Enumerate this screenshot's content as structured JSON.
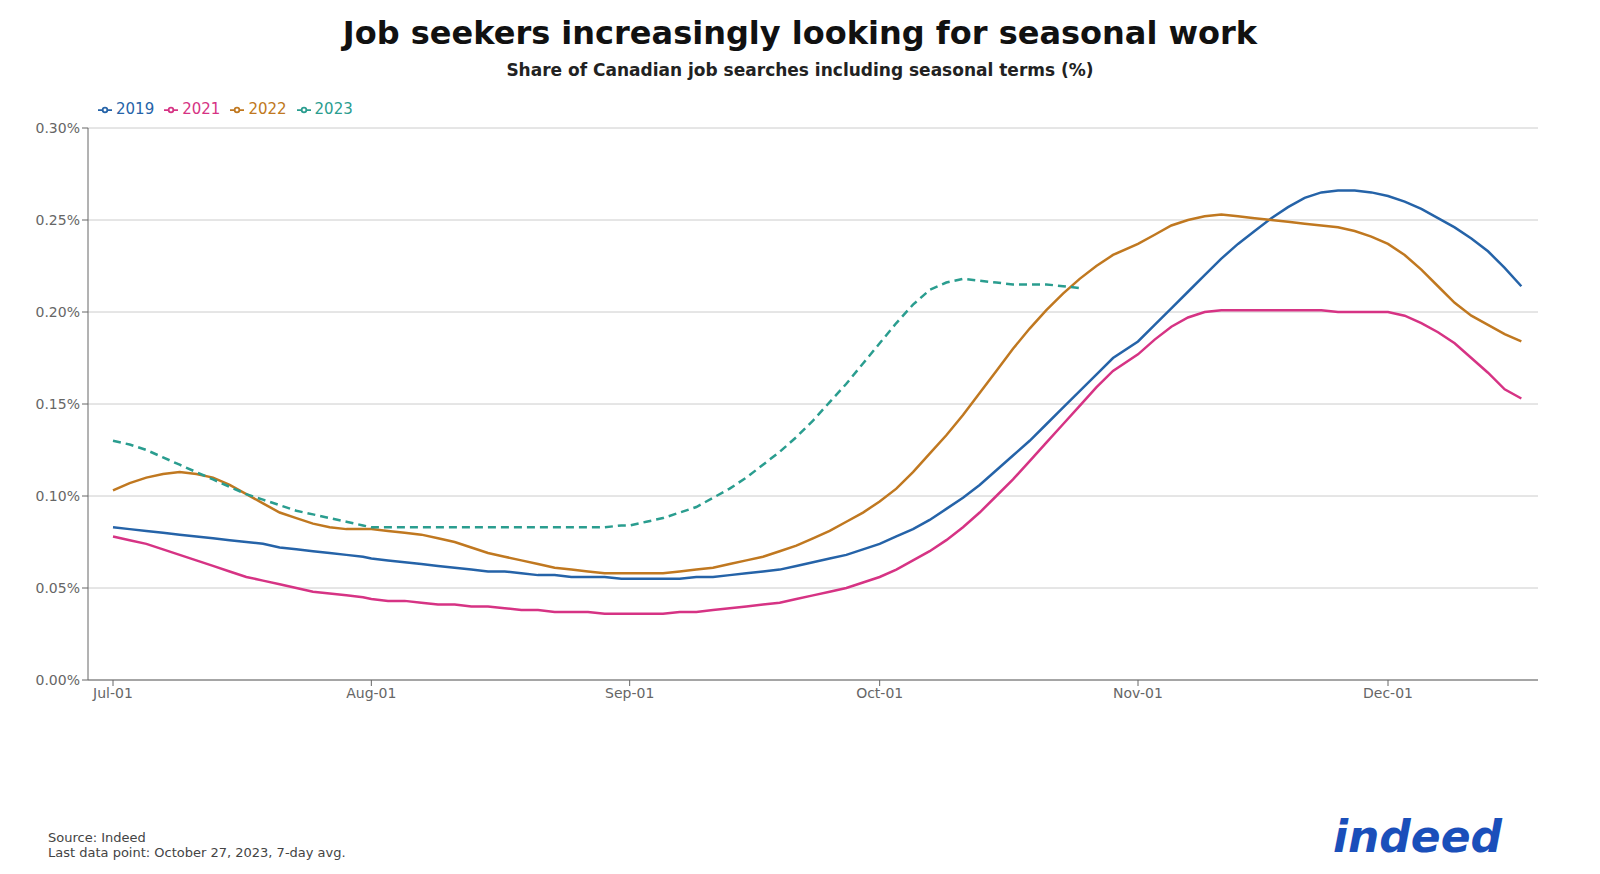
{
  "chart_data": {
    "type": "line",
    "title": "Job seekers increasingly looking for seasonal work",
    "subtitle": "Share of Canadian job searches including seasonal terms (%)",
    "annotations": [
      {
        "text": "Source: Indeed\nLast data point: October 27, 2023, 7-day avg."
      },
      {
        "text": "indeed",
        "color": "#1a4fba"
      }
    ],
    "xlim": [
      179,
      353
    ],
    "xticks": [
      {
        "value": 182,
        "label": "Jul-01"
      },
      {
        "value": 213,
        "label": "Aug-01"
      },
      {
        "value": 244,
        "label": "Sep-01"
      },
      {
        "value": 274,
        "label": "Oct-01"
      },
      {
        "value": 305,
        "label": "Nov-01"
      },
      {
        "value": 335,
        "label": "Dec-01"
      }
    ],
    "ylim": [
      0.0,
      0.003
    ],
    "yticks": [
      {
        "value": 0.0,
        "label": "0.00%"
      },
      {
        "value": 0.0005,
        "label": "0.05%"
      },
      {
        "value": 0.001,
        "label": "0.10%"
      },
      {
        "value": 0.0015,
        "label": "0.15%"
      },
      {
        "value": 0.002,
        "label": "0.20%"
      },
      {
        "value": 0.0025,
        "label": "0.25%"
      },
      {
        "value": 0.003,
        "label": "0.30%"
      }
    ],
    "grid": "y",
    "legend": "upper left",
    "series": [
      {
        "name": "2019",
        "color": "#2563a8",
        "line_style": "solid",
        "x": [
          182,
          184,
          186,
          188,
          190,
          192,
          194,
          196,
          198,
          200,
          202,
          204,
          206,
          208,
          210,
          212,
          213,
          215,
          217,
          219,
          221,
          223,
          225,
          227,
          229,
          231,
          233,
          235,
          237,
          239,
          241,
          243,
          244,
          246,
          248,
          250,
          252,
          254,
          256,
          258,
          260,
          262,
          264,
          266,
          268,
          270,
          272,
          274,
          276,
          278,
          280,
          282,
          284,
          286,
          288,
          290,
          292,
          294,
          296,
          298,
          300,
          302,
          305,
          307,
          309,
          311,
          313,
          315,
          317,
          319,
          321,
          323,
          325,
          327,
          329,
          331,
          333,
          335,
          337,
          339,
          341,
          343,
          345,
          347,
          349,
          351
        ],
        "values": [
          0.00083,
          0.00082,
          0.00081,
          0.0008,
          0.00079,
          0.00078,
          0.00077,
          0.00076,
          0.00075,
          0.00074,
          0.00072,
          0.00071,
          0.0007,
          0.00069,
          0.00068,
          0.00067,
          0.00066,
          0.00065,
          0.00064,
          0.00063,
          0.00062,
          0.00061,
          0.0006,
          0.00059,
          0.00059,
          0.00058,
          0.00057,
          0.00057,
          0.00056,
          0.00056,
          0.00056,
          0.00055,
          0.00055,
          0.00055,
          0.00055,
          0.00055,
          0.00056,
          0.00056,
          0.00057,
          0.00058,
          0.00059,
          0.0006,
          0.00062,
          0.00064,
          0.00066,
          0.00068,
          0.00071,
          0.00074,
          0.00078,
          0.00082,
          0.00087,
          0.00093,
          0.00099,
          0.00106,
          0.00114,
          0.00122,
          0.0013,
          0.00139,
          0.00148,
          0.00157,
          0.00166,
          0.00175,
          0.00184,
          0.00193,
          0.00202,
          0.00211,
          0.0022,
          0.00229,
          0.00237,
          0.00244,
          0.00251,
          0.00257,
          0.00262,
          0.00265,
          0.00266,
          0.00266,
          0.00265,
          0.00263,
          0.0026,
          0.00256,
          0.00251,
          0.00246,
          0.0024,
          0.00233,
          0.00224,
          0.00214
        ]
      },
      {
        "name": "2021",
        "color": "#d63384",
        "line_style": "solid",
        "x": [
          182,
          184,
          186,
          188,
          190,
          192,
          194,
          196,
          198,
          200,
          202,
          204,
          206,
          208,
          210,
          212,
          213,
          215,
          217,
          219,
          221,
          223,
          225,
          227,
          229,
          231,
          233,
          235,
          237,
          239,
          241,
          243,
          244,
          246,
          248,
          250,
          252,
          254,
          256,
          258,
          260,
          262,
          264,
          266,
          268,
          270,
          272,
          274,
          276,
          278,
          280,
          282,
          284,
          286,
          288,
          290,
          292,
          294,
          296,
          298,
          300,
          302,
          305,
          307,
          309,
          311,
          313,
          315,
          317,
          319,
          321,
          323,
          325,
          327,
          329,
          331,
          333,
          335,
          337,
          339,
          341,
          343,
          345,
          347,
          349,
          351
        ],
        "values": [
          0.00078,
          0.00076,
          0.00074,
          0.00071,
          0.00068,
          0.00065,
          0.00062,
          0.00059,
          0.00056,
          0.00054,
          0.00052,
          0.0005,
          0.00048,
          0.00047,
          0.00046,
          0.00045,
          0.00044,
          0.00043,
          0.00043,
          0.00042,
          0.00041,
          0.00041,
          0.0004,
          0.0004,
          0.00039,
          0.00038,
          0.00038,
          0.00037,
          0.00037,
          0.00037,
          0.00036,
          0.00036,
          0.00036,
          0.00036,
          0.00036,
          0.00037,
          0.00037,
          0.00038,
          0.00039,
          0.0004,
          0.00041,
          0.00042,
          0.00044,
          0.00046,
          0.00048,
          0.0005,
          0.00053,
          0.00056,
          0.0006,
          0.00065,
          0.0007,
          0.00076,
          0.00083,
          0.00091,
          0.001,
          0.00109,
          0.00119,
          0.00129,
          0.00139,
          0.00149,
          0.00159,
          0.00168,
          0.00177,
          0.00185,
          0.00192,
          0.00197,
          0.002,
          0.00201,
          0.00201,
          0.00201,
          0.00201,
          0.00201,
          0.00201,
          0.00201,
          0.002,
          0.002,
          0.002,
          0.002,
          0.00198,
          0.00194,
          0.00189,
          0.00183,
          0.00175,
          0.00167,
          0.00158,
          0.00153
        ]
      },
      {
        "name": "2022",
        "color": "#c07820",
        "line_style": "solid",
        "x": [
          182,
          184,
          186,
          188,
          190,
          192,
          194,
          196,
          198,
          200,
          202,
          204,
          206,
          208,
          210,
          212,
          213,
          215,
          217,
          219,
          221,
          223,
          225,
          227,
          229,
          231,
          233,
          235,
          237,
          239,
          241,
          243,
          244,
          246,
          248,
          250,
          252,
          254,
          256,
          258,
          260,
          262,
          264,
          266,
          268,
          270,
          272,
          274,
          276,
          278,
          280,
          282,
          284,
          286,
          288,
          290,
          292,
          294,
          296,
          298,
          300,
          302,
          305,
          307,
          309,
          311,
          313,
          315,
          317,
          319,
          321,
          323,
          325,
          327,
          329,
          331,
          333,
          335,
          337,
          339,
          341,
          343,
          345,
          347,
          349,
          351
        ],
        "values": [
          0.00103,
          0.00107,
          0.0011,
          0.00112,
          0.00113,
          0.00112,
          0.0011,
          0.00106,
          0.00101,
          0.00096,
          0.00091,
          0.00088,
          0.00085,
          0.00083,
          0.00082,
          0.00082,
          0.00082,
          0.00081,
          0.0008,
          0.00079,
          0.00077,
          0.00075,
          0.00072,
          0.00069,
          0.00067,
          0.00065,
          0.00063,
          0.00061,
          0.0006,
          0.00059,
          0.00058,
          0.00058,
          0.00058,
          0.00058,
          0.00058,
          0.00059,
          0.0006,
          0.00061,
          0.00063,
          0.00065,
          0.00067,
          0.0007,
          0.00073,
          0.00077,
          0.00081,
          0.00086,
          0.00091,
          0.00097,
          0.00104,
          0.00113,
          0.00123,
          0.00133,
          0.00144,
          0.00156,
          0.00168,
          0.0018,
          0.00191,
          0.00201,
          0.0021,
          0.00218,
          0.00225,
          0.00231,
          0.00237,
          0.00242,
          0.00247,
          0.0025,
          0.00252,
          0.00253,
          0.00252,
          0.00251,
          0.0025,
          0.00249,
          0.00248,
          0.00247,
          0.00246,
          0.00244,
          0.00241,
          0.00237,
          0.00231,
          0.00223,
          0.00214,
          0.00205,
          0.00198,
          0.00193,
          0.00188,
          0.00184
        ]
      },
      {
        "name": "2023",
        "color": "#2a9d8f",
        "line_style": "dashed",
        "x": [
          182,
          184,
          186,
          188,
          190,
          192,
          194,
          196,
          198,
          200,
          202,
          204,
          206,
          208,
          210,
          212,
          213,
          215,
          217,
          219,
          221,
          223,
          225,
          227,
          229,
          231,
          233,
          235,
          237,
          239,
          241,
          243,
          244,
          246,
          248,
          250,
          252,
          254,
          256,
          258,
          260,
          262,
          264,
          266,
          268,
          270,
          272,
          274,
          276,
          278,
          280,
          282,
          284,
          286,
          288,
          290,
          292,
          294,
          296,
          298
        ],
        "values": [
          0.0013,
          0.00128,
          0.00125,
          0.00121,
          0.00117,
          0.00113,
          0.00109,
          0.00105,
          0.00101,
          0.00098,
          0.00095,
          0.00092,
          0.0009,
          0.00088,
          0.00086,
          0.00084,
          0.00083,
          0.00083,
          0.00083,
          0.00083,
          0.00083,
          0.00083,
          0.00083,
          0.00083,
          0.00083,
          0.00083,
          0.00083,
          0.00083,
          0.00083,
          0.00083,
          0.00083,
          0.00084,
          0.00084,
          0.00086,
          0.00088,
          0.00091,
          0.00094,
          0.00099,
          0.00104,
          0.0011,
          0.00117,
          0.00124,
          0.00132,
          0.00141,
          0.00151,
          0.00161,
          0.00172,
          0.00183,
          0.00194,
          0.00204,
          0.00212,
          0.00216,
          0.00218,
          0.00217,
          0.00216,
          0.00215,
          0.00215,
          0.00215,
          0.00214,
          0.00213
        ]
      }
    ]
  }
}
